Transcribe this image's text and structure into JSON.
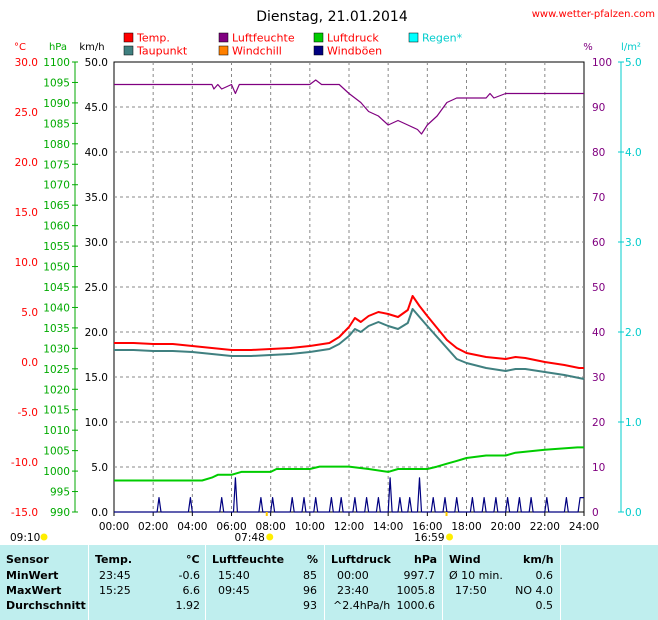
{
  "chart_data": {
    "type": "line",
    "title": "Dienstag, 21.01.2014",
    "source": "www.wetter-pfalzen.com",
    "axis_units": {
      "temp": "°C",
      "pressure": "hPa",
      "wind": "km/h",
      "humidity": "%",
      "rain": "l/m²"
    },
    "axes": {
      "temp": {
        "min": -15,
        "max": 30,
        "ticks": [
          "30.0",
          "25.0",
          "20.0",
          "15.0",
          "10.0",
          "5.0",
          "0.0",
          "-5.0",
          "-10.0",
          "-15.0"
        ],
        "color": "#ff0000"
      },
      "pressure": {
        "min": 990,
        "max": 1100,
        "ticks": [
          "1100",
          "1095",
          "1090",
          "1085",
          "1080",
          "1075",
          "1070",
          "1065",
          "1060",
          "1055",
          "1050",
          "1045",
          "1040",
          "1035",
          "1030",
          "1025",
          "1020",
          "1015",
          "1010",
          "1005",
          "1000",
          "995",
          "990"
        ],
        "color": "#00cc00"
      },
      "wind": {
        "min": 0,
        "max": 50,
        "ticks": [
          "50.0",
          "45.0",
          "40.0",
          "35.0",
          "30.0",
          "25.0",
          "20.0",
          "15.0",
          "10.0",
          "5.0",
          "0.0"
        ],
        "color": "#000000"
      },
      "humidity": {
        "min": 0,
        "max": 100,
        "ticks": [
          "100",
          "90",
          "80",
          "70",
          "60",
          "50",
          "40",
          "30",
          "20",
          "10",
          "0"
        ],
        "color": "#800080"
      },
      "rain": {
        "min": 0,
        "max": 5,
        "ticks": [
          "5.0",
          "4.0",
          "3.0",
          "2.0",
          "1.0",
          "0.0"
        ],
        "color": "#00cccc"
      }
    },
    "x_ticks": [
      "00:00",
      "02:00",
      "04:00",
      "06:00",
      "08:00",
      "10:00",
      "12:00",
      "14:00",
      "16:00",
      "18:00",
      "20:00",
      "22:00",
      "24:00"
    ],
    "x_range": [
      0,
      24
    ],
    "grid": true,
    "legend": [
      {
        "label": "Temp.",
        "color": "#ff0000"
      },
      {
        "label": "Luftfeuchte",
        "color": "#800080"
      },
      {
        "label": "Luftdruck",
        "color": "#00cc00"
      },
      {
        "label": "Regen*",
        "color": "#00ffff"
      },
      {
        "label": "Taupunkt",
        "color": "#408080"
      },
      {
        "label": "Windchill",
        "color": "#ff8000"
      },
      {
        "label": "Windböen",
        "color": "#000080"
      }
    ],
    "sun_markers": [
      {
        "label": "09:10",
        "hour": -1.3
      },
      {
        "label": "07:48",
        "hour": 7.8
      },
      {
        "label": "16:59",
        "hour": 16.98
      }
    ],
    "series": [
      {
        "name": "Temp.",
        "axis": "temp",
        "color": "#ff0000",
        "points": [
          [
            0,
            1.9
          ],
          [
            1,
            1.9
          ],
          [
            2,
            1.8
          ],
          [
            3,
            1.8
          ],
          [
            4,
            1.6
          ],
          [
            5,
            1.4
          ],
          [
            6,
            1.2
          ],
          [
            7,
            1.2
          ],
          [
            8,
            1.3
          ],
          [
            9,
            1.4
          ],
          [
            10,
            1.6
          ],
          [
            11,
            1.9
          ],
          [
            11.5,
            2.5
          ],
          [
            12,
            3.5
          ],
          [
            12.3,
            4.4
          ],
          [
            12.6,
            4.0
          ],
          [
            13,
            4.6
          ],
          [
            13.5,
            5.0
          ],
          [
            14,
            4.8
          ],
          [
            14.5,
            4.5
          ],
          [
            15,
            5.2
          ],
          [
            15.25,
            6.6
          ],
          [
            15.6,
            5.6
          ],
          [
            16,
            4.6
          ],
          [
            16.5,
            3.4
          ],
          [
            17,
            2.2
          ],
          [
            17.5,
            1.4
          ],
          [
            18,
            0.9
          ],
          [
            19,
            0.5
          ],
          [
            20,
            0.3
          ],
          [
            20.5,
            0.5
          ],
          [
            21,
            0.4
          ],
          [
            22,
            0.0
          ],
          [
            23,
            -0.3
          ],
          [
            23.75,
            -0.6
          ],
          [
            24,
            -0.6
          ]
        ]
      },
      {
        "name": "Taupunkt",
        "axis": "temp",
        "color": "#408080",
        "points": [
          [
            0,
            1.2
          ],
          [
            1,
            1.2
          ],
          [
            2,
            1.1
          ],
          [
            3,
            1.1
          ],
          [
            4,
            1.0
          ],
          [
            5,
            0.8
          ],
          [
            6,
            0.6
          ],
          [
            7,
            0.6
          ],
          [
            8,
            0.7
          ],
          [
            9,
            0.8
          ],
          [
            10,
            1.0
          ],
          [
            11,
            1.3
          ],
          [
            11.5,
            1.8
          ],
          [
            12,
            2.6
          ],
          [
            12.3,
            3.3
          ],
          [
            12.6,
            3.0
          ],
          [
            13,
            3.6
          ],
          [
            13.5,
            4.0
          ],
          [
            14,
            3.6
          ],
          [
            14.5,
            3.3
          ],
          [
            15,
            3.9
          ],
          [
            15.25,
            5.3
          ],
          [
            15.6,
            4.5
          ],
          [
            16,
            3.6
          ],
          [
            16.5,
            2.5
          ],
          [
            17,
            1.4
          ],
          [
            17.5,
            0.3
          ],
          [
            18,
            -0.1
          ],
          [
            19,
            -0.6
          ],
          [
            20,
            -0.9
          ],
          [
            20.5,
            -0.7
          ],
          [
            21,
            -0.7
          ],
          [
            22,
            -1.0
          ],
          [
            23,
            -1.3
          ],
          [
            24,
            -1.7
          ]
        ]
      },
      {
        "name": "Luftfeuchte",
        "axis": "humidity",
        "color": "#800080",
        "points": [
          [
            0,
            95
          ],
          [
            5,
            95
          ],
          [
            5.1,
            94
          ],
          [
            5.3,
            95
          ],
          [
            5.5,
            94
          ],
          [
            6,
            95
          ],
          [
            6.2,
            93
          ],
          [
            6.4,
            95
          ],
          [
            10,
            95
          ],
          [
            10.3,
            96
          ],
          [
            10.6,
            95
          ],
          [
            11.5,
            95
          ],
          [
            12,
            93
          ],
          [
            12.6,
            91
          ],
          [
            13,
            89
          ],
          [
            13.5,
            88
          ],
          [
            14,
            86
          ],
          [
            14.5,
            87
          ],
          [
            15,
            86
          ],
          [
            15.5,
            85
          ],
          [
            15.7,
            84
          ],
          [
            16,
            86
          ],
          [
            16.5,
            88
          ],
          [
            17,
            91
          ],
          [
            17.5,
            92
          ],
          [
            18,
            92
          ],
          [
            18.5,
            92
          ],
          [
            19,
            92
          ],
          [
            19.2,
            93
          ],
          [
            19.4,
            92
          ],
          [
            20,
            93
          ],
          [
            24,
            93
          ]
        ]
      },
      {
        "name": "Luftdruck",
        "axis": "pressure",
        "color": "#00cc00",
        "points": [
          [
            0,
            997.7
          ],
          [
            4.5,
            997.7
          ],
          [
            5,
            998.4
          ],
          [
            5.3,
            999.1
          ],
          [
            6,
            999.1
          ],
          [
            6.5,
            999.8
          ],
          [
            8,
            999.8
          ],
          [
            8.3,
            1000.5
          ],
          [
            10,
            1000.5
          ],
          [
            10.5,
            1001.1
          ],
          [
            12,
            1001.1
          ],
          [
            13,
            1000.5
          ],
          [
            14,
            999.8
          ],
          [
            14.5,
            1000.5
          ],
          [
            15,
            1000.5
          ],
          [
            16,
            1000.5
          ],
          [
            16.5,
            1001.1
          ],
          [
            17,
            1001.8
          ],
          [
            17.5,
            1002.5
          ],
          [
            18,
            1003.2
          ],
          [
            19,
            1003.8
          ],
          [
            20,
            1003.8
          ],
          [
            20.5,
            1004.5
          ],
          [
            22,
            1005.2
          ],
          [
            23.67,
            1005.8
          ],
          [
            24,
            1005.8
          ]
        ]
      },
      {
        "name": "Windböen",
        "axis": "wind",
        "color": "#000080",
        "points": [
          [
            0,
            0
          ],
          [
            2.2,
            0
          ],
          [
            2.3,
            1.6
          ],
          [
            2.4,
            0
          ],
          [
            3.8,
            0
          ],
          [
            3.9,
            1.6
          ],
          [
            4.0,
            0
          ],
          [
            5.4,
            0
          ],
          [
            5.5,
            1.6
          ],
          [
            5.6,
            0
          ],
          [
            6.1,
            0
          ],
          [
            6.2,
            3.8
          ],
          [
            6.3,
            0
          ],
          [
            7.4,
            0
          ],
          [
            7.5,
            1.6
          ],
          [
            7.6,
            0
          ],
          [
            8.0,
            0
          ],
          [
            8.1,
            1.6
          ],
          [
            8.2,
            0
          ],
          [
            9.0,
            0
          ],
          [
            9.1,
            1.6
          ],
          [
            9.2,
            0
          ],
          [
            9.6,
            0
          ],
          [
            9.7,
            1.6
          ],
          [
            9.8,
            0
          ],
          [
            10.2,
            0
          ],
          [
            10.3,
            1.6
          ],
          [
            10.4,
            0
          ],
          [
            11.0,
            0
          ],
          [
            11.1,
            1.6
          ],
          [
            11.2,
            0
          ],
          [
            11.5,
            0
          ],
          [
            11.6,
            1.6
          ],
          [
            11.7,
            0
          ],
          [
            12.2,
            0
          ],
          [
            12.3,
            1.6
          ],
          [
            12.4,
            0
          ],
          [
            12.8,
            0
          ],
          [
            12.9,
            1.6
          ],
          [
            13.0,
            0
          ],
          [
            13.4,
            0
          ],
          [
            13.5,
            1.6
          ],
          [
            13.6,
            0
          ],
          [
            14.0,
            0
          ],
          [
            14.1,
            3.8
          ],
          [
            14.2,
            0
          ],
          [
            14.5,
            0
          ],
          [
            14.6,
            1.6
          ],
          [
            14.7,
            0
          ],
          [
            15.0,
            0
          ],
          [
            15.1,
            1.6
          ],
          [
            15.2,
            0
          ],
          [
            15.5,
            0
          ],
          [
            15.6,
            3.8
          ],
          [
            15.7,
            0
          ],
          [
            16.2,
            0
          ],
          [
            16.3,
            1.6
          ],
          [
            16.4,
            0
          ],
          [
            16.8,
            0
          ],
          [
            16.9,
            1.6
          ],
          [
            17.0,
            0
          ],
          [
            17.4,
            0
          ],
          [
            17.5,
            1.6
          ],
          [
            17.6,
            0
          ],
          [
            18.2,
            0
          ],
          [
            18.3,
            1.6
          ],
          [
            18.4,
            0
          ],
          [
            18.8,
            0
          ],
          [
            18.9,
            1.6
          ],
          [
            19.0,
            0
          ],
          [
            19.4,
            0
          ],
          [
            19.5,
            1.6
          ],
          [
            19.6,
            0
          ],
          [
            20.0,
            0
          ],
          [
            20.1,
            1.6
          ],
          [
            20.2,
            0
          ],
          [
            20.6,
            0
          ],
          [
            20.7,
            1.6
          ],
          [
            20.8,
            0
          ],
          [
            21.2,
            0
          ],
          [
            21.3,
            1.6
          ],
          [
            21.4,
            0
          ],
          [
            22.0,
            0
          ],
          [
            22.1,
            1.6
          ],
          [
            22.2,
            0
          ],
          [
            23.0,
            0
          ],
          [
            23.1,
            1.6
          ],
          [
            23.2,
            0
          ],
          [
            23.7,
            0
          ],
          [
            23.8,
            1.6
          ],
          [
            24,
            1.6
          ]
        ]
      }
    ],
    "wind_gust_pattern": "dense"
  },
  "stats": {
    "headers": {
      "sensor": "Sensor",
      "temp": "Temp.",
      "temp_unit": "°C",
      "hum": "Luftfeuchte",
      "hum_unit": "%",
      "press": "Luftdruck",
      "press_unit": "hPa",
      "wind": "Wind",
      "wind_unit": "km/h"
    },
    "rows": [
      {
        "label": "MinWert",
        "temp_time": "23:45",
        "temp_val": "-0.6",
        "hum_time": "15:40",
        "hum_val": "85",
        "press_time": "00:00",
        "press_val": "997.7",
        "wind_time": "Ø 10 min.",
        "wind_val": "0.6"
      },
      {
        "label": "MaxWert",
        "temp_time": "15:25",
        "temp_val": "6.6",
        "hum_time": "09:45",
        "hum_val": "96",
        "press_time": "23:40",
        "press_val": "1005.8",
        "wind_time": "17:50",
        "wind_val": "NO 4.0"
      },
      {
        "label": "Durchschnitt",
        "temp_time": "",
        "temp_val": "1.92",
        "hum_time": "",
        "hum_val": "93",
        "press_time": "^2.4hPa/h",
        "press_val": "1000.6",
        "wind_time": "",
        "wind_val": "0.5"
      }
    ]
  }
}
